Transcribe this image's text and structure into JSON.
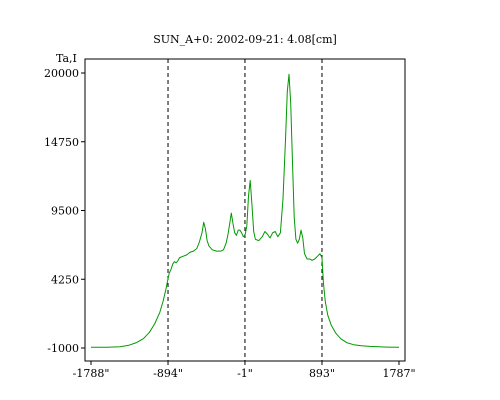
{
  "chart_data": {
    "type": "line",
    "title": "SUN_A+0: 2002-09-21: 4.08[cm]",
    "ylabel": "Ta,I",
    "xlabel": "",
    "xlim": [
      -1788,
      1787
    ],
    "ylim": [
      -1000,
      21000
    ],
    "x_ticks": [
      -1788,
      -894,
      -1,
      893,
      1787
    ],
    "x_tick_labels": [
      "-1788\"",
      "-894\"",
      "-1\"",
      "893\"",
      "1787\""
    ],
    "y_ticks": [
      -1000,
      4250,
      9500,
      14750,
      20000
    ],
    "y_tick_labels": [
      "-1000",
      "4250",
      "9500",
      "14750",
      "20000"
    ],
    "vlines": [
      -894,
      -1,
      893
    ],
    "grid": false,
    "series": [
      {
        "color": "#009900",
        "points": [
          [
            -1788,
            -945
          ],
          [
            -1600,
            -945
          ],
          [
            -1450,
            -900
          ],
          [
            -1350,
            -790
          ],
          [
            -1260,
            -590
          ],
          [
            -1180,
            -290
          ],
          [
            -1110,
            200
          ],
          [
            -1050,
            830
          ],
          [
            -990,
            1720
          ],
          [
            -950,
            2600
          ],
          [
            -920,
            3450
          ],
          [
            -900,
            4100
          ],
          [
            -880,
            4700
          ],
          [
            -860,
            5000
          ],
          [
            -840,
            5400
          ],
          [
            -820,
            5600
          ],
          [
            -800,
            5500
          ],
          [
            -780,
            5650
          ],
          [
            -760,
            5900
          ],
          [
            -720,
            6000
          ],
          [
            -680,
            6100
          ],
          [
            -640,
            6300
          ],
          [
            -600,
            6400
          ],
          [
            -560,
            6600
          ],
          [
            -530,
            7100
          ],
          [
            -500,
            7800
          ],
          [
            -480,
            8600
          ],
          [
            -460,
            8100
          ],
          [
            -440,
            7200
          ],
          [
            -420,
            6800
          ],
          [
            -380,
            6500
          ],
          [
            -330,
            6400
          ],
          [
            -280,
            6400
          ],
          [
            -250,
            6500
          ],
          [
            -220,
            7000
          ],
          [
            -200,
            7600
          ],
          [
            -180,
            8400
          ],
          [
            -160,
            9300
          ],
          [
            -140,
            8500
          ],
          [
            -120,
            7800
          ],
          [
            -100,
            7600
          ],
          [
            -80,
            8000
          ],
          [
            -60,
            8000
          ],
          [
            -40,
            7800
          ],
          [
            -20,
            7500
          ],
          [
            0,
            7600
          ],
          [
            20,
            8300
          ],
          [
            40,
            10600
          ],
          [
            60,
            11800
          ],
          [
            80,
            10000
          ],
          [
            100,
            7900
          ],
          [
            120,
            7300
          ],
          [
            160,
            7200
          ],
          [
            200,
            7500
          ],
          [
            230,
            7900
          ],
          [
            260,
            7700
          ],
          [
            290,
            7400
          ],
          [
            320,
            7800
          ],
          [
            350,
            7900
          ],
          [
            380,
            7500
          ],
          [
            410,
            7800
          ],
          [
            440,
            10400
          ],
          [
            470,
            14900
          ],
          [
            490,
            18600
          ],
          [
            510,
            19900
          ],
          [
            530,
            17700
          ],
          [
            550,
            13400
          ],
          [
            570,
            9000
          ],
          [
            590,
            7300
          ],
          [
            610,
            7000
          ],
          [
            630,
            7300
          ],
          [
            650,
            8000
          ],
          [
            670,
            7400
          ],
          [
            690,
            6200
          ],
          [
            720,
            5800
          ],
          [
            750,
            5800
          ],
          [
            780,
            5700
          ],
          [
            810,
            5800
          ],
          [
            840,
            6000
          ],
          [
            870,
            6200
          ],
          [
            893,
            5900
          ],
          [
            910,
            4000
          ],
          [
            930,
            2600
          ],
          [
            960,
            1500
          ],
          [
            1000,
            750
          ],
          [
            1050,
            160
          ],
          [
            1110,
            -290
          ],
          [
            1180,
            -590
          ],
          [
            1260,
            -750
          ],
          [
            1350,
            -830
          ],
          [
            1450,
            -880
          ],
          [
            1550,
            -910
          ],
          [
            1650,
            -930
          ],
          [
            1787,
            -945
          ]
        ]
      }
    ]
  }
}
